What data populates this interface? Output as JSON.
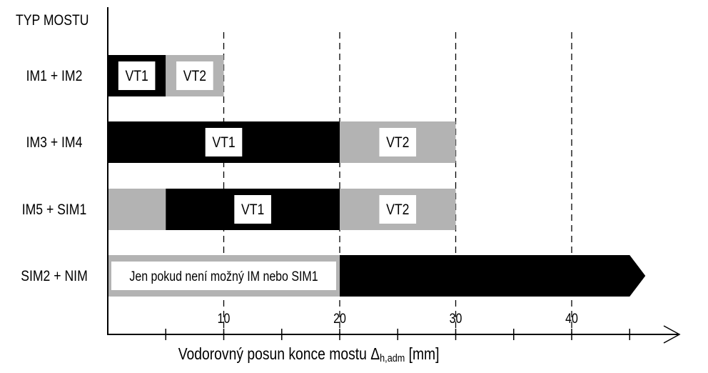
{
  "chart_data": {
    "type": "bar",
    "title": "",
    "category_axis_title": "TYP MOSTU",
    "xlabel": {
      "prefix": "Vodorovný posun konce mostu Δ",
      "subscript": "h,adm",
      "suffix": " [mm]"
    },
    "xlim": [
      0,
      50
    ],
    "x_ticks": [
      10,
      20,
      30,
      40
    ],
    "x_minor_step": 5,
    "grid": "dashed vertical at 10, 20, 30, 40",
    "categories": [
      "IM1 + IM2",
      "IM3 + IM4",
      "IM5 + SIM1",
      "SIM2 + NIM"
    ],
    "segments": [
      {
        "row": 0,
        "start": 0,
        "end": 5,
        "color": "#000000",
        "label": "VT1"
      },
      {
        "row": 0,
        "start": 5,
        "end": 10,
        "color": "#b3b3b3",
        "label": "VT2"
      },
      {
        "row": 1,
        "start": 0,
        "end": 20,
        "color": "#000000",
        "label": "VT1"
      },
      {
        "row": 1,
        "start": 20,
        "end": 30,
        "color": "#b3b3b3",
        "label": "VT2"
      },
      {
        "row": 2,
        "start": 0,
        "end": 5,
        "color": "#b3b3b3",
        "label": ""
      },
      {
        "row": 2,
        "start": 5,
        "end": 20,
        "color": "#000000",
        "label": "VT1"
      },
      {
        "row": 2,
        "start": 20,
        "end": 30,
        "color": "#b3b3b3",
        "label": "VT2"
      },
      {
        "row": 3,
        "start": 0,
        "end": 20,
        "color": "#b3b3b3",
        "label": "Jen pokud není možný IM nebo SIM1"
      },
      {
        "row": 3,
        "start": 20,
        "end": 45,
        "color": "#000000",
        "label": "",
        "arrow": true
      }
    ]
  },
  "colors": {
    "vt1": "#000000",
    "vt2": "#b3b3b3",
    "axis": "#000000"
  }
}
